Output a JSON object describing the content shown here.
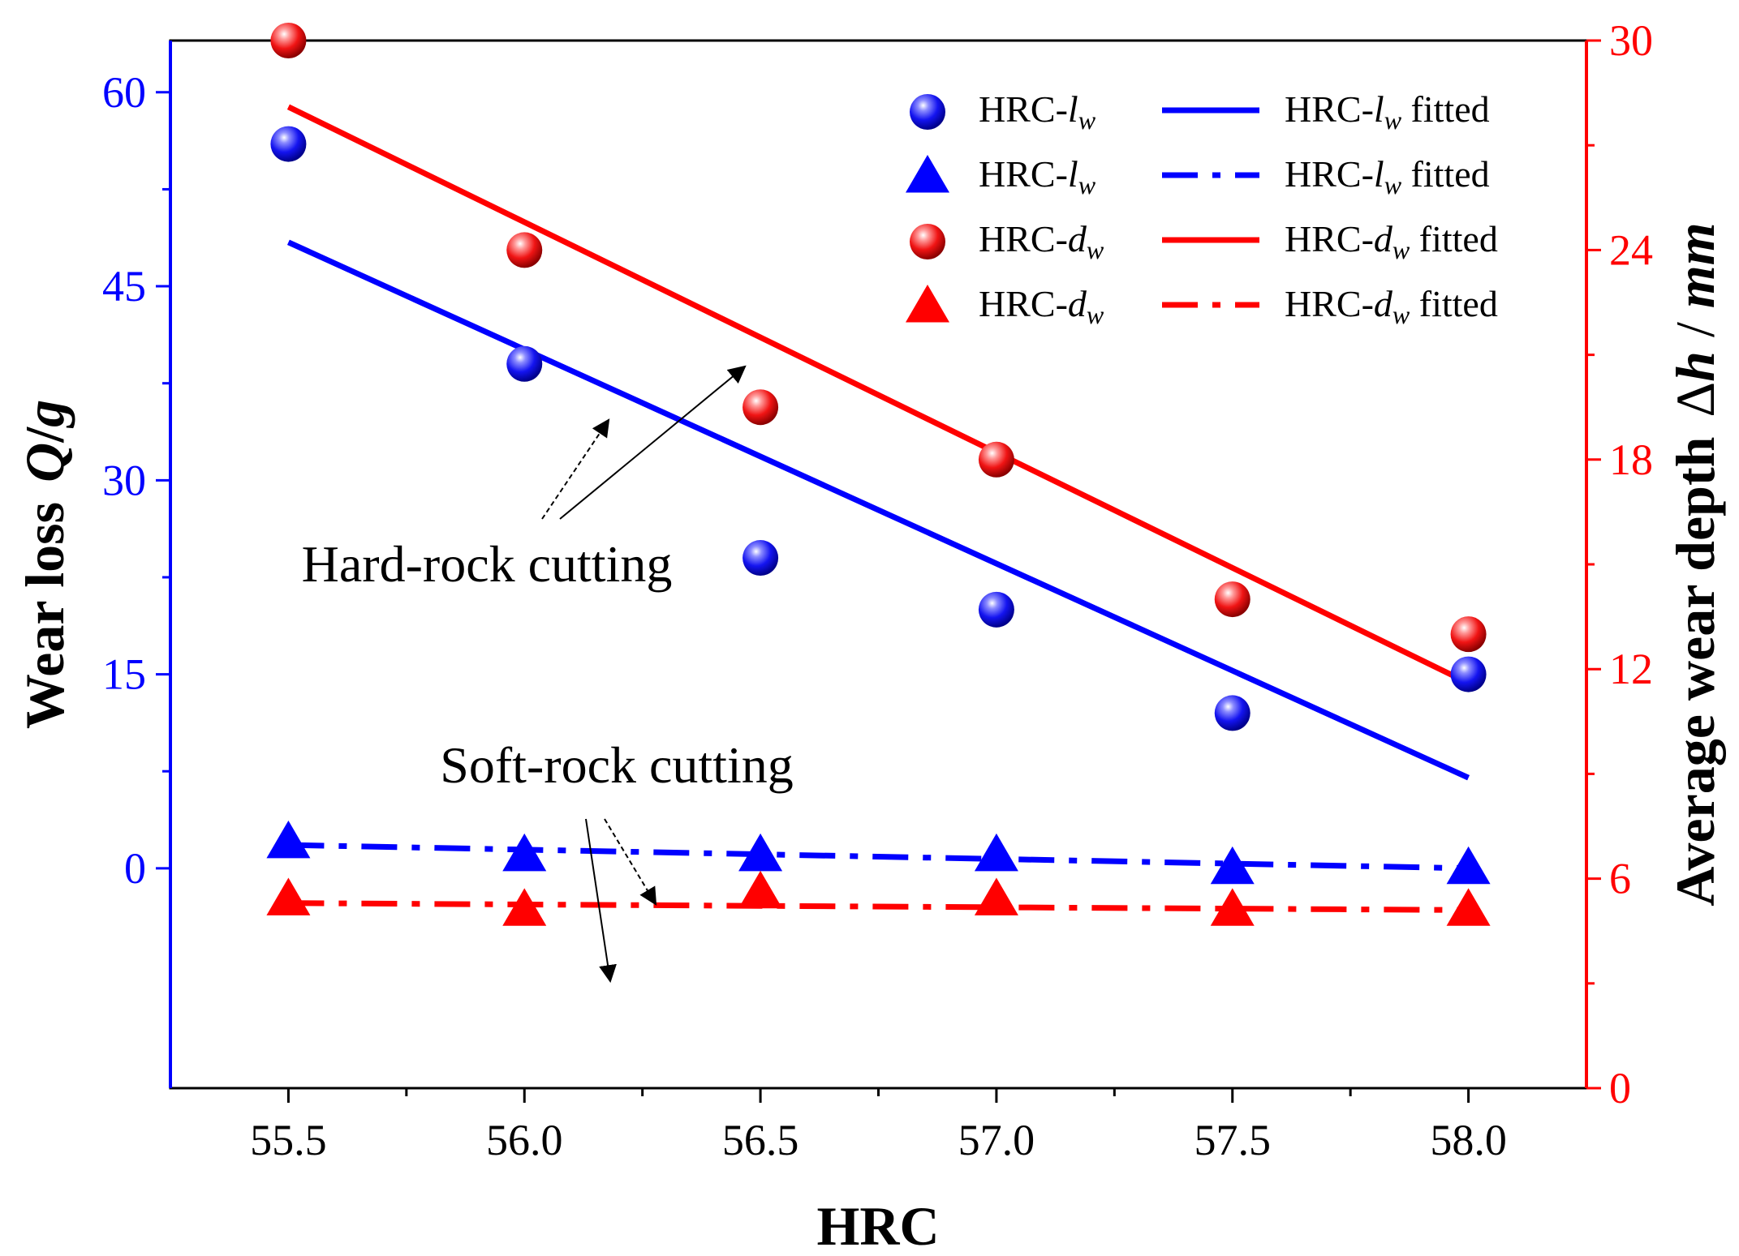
{
  "chart_data": {
    "type": "scatter",
    "xlabel": "HRC",
    "ylabel": {
      "prefix": "Wear loss",
      "symbol": "Q",
      "unit": "g"
    },
    "y2label": {
      "prefix": "Average wear depth",
      "symbol": "h",
      "unit": "mm"
    },
    "xlim": [
      55.25,
      58.25
    ],
    "ylim": [
      -17,
      64
    ],
    "y2lim": [
      0,
      30
    ],
    "xticks": [
      55.5,
      56.0,
      56.5,
      57.0,
      57.5,
      58.0
    ],
    "xtick_labels": [
      "55.5",
      "56.0",
      "56.5",
      "57.0",
      "57.5",
      "58.0"
    ],
    "yticks": [
      0,
      15,
      30,
      45,
      60
    ],
    "ytick_labels": [
      "0",
      "15",
      "30",
      "45",
      "60"
    ],
    "y2ticks": [
      0,
      6,
      12,
      18,
      24,
      30
    ],
    "y2tick_labels": [
      "0",
      "6",
      "12",
      "18",
      "24",
      "30"
    ],
    "colors": {
      "blue": "#0000ff",
      "red": "#ff0000",
      "axis": "#000000"
    },
    "series": [
      {
        "name": "HRC-lw",
        "kind": "points",
        "marker": "sphere",
        "color": "#0000ff",
        "axis": "left",
        "x": [
          55.5,
          56.0,
          56.5,
          57.0,
          57.5,
          58.0
        ],
        "y": [
          56.0,
          39.0,
          24.0,
          20.0,
          12.0,
          15.0
        ]
      },
      {
        "name": "HRC-lw fitted",
        "kind": "line",
        "style": "solid",
        "color": "#0000ff",
        "axis": "left",
        "x": [
          55.5,
          58.0
        ],
        "y": [
          48.4,
          7.0
        ]
      },
      {
        "name": "HRC-lw",
        "kind": "points",
        "marker": "triangle",
        "color": "#0000ff",
        "axis": "left",
        "x": [
          55.5,
          56.0,
          56.5,
          57.0,
          57.5,
          58.0
        ],
        "y": [
          2.0,
          1.0,
          1.0,
          1.0,
          0.0,
          0.0
        ]
      },
      {
        "name": "HRC-lw fitted",
        "kind": "line",
        "style": "dashdot",
        "color": "#0000ff",
        "axis": "left",
        "x": [
          55.5,
          58.0
        ],
        "y": [
          1.8,
          0.0
        ]
      },
      {
        "name": "HRC-dw",
        "kind": "points",
        "marker": "sphere",
        "color": "#ff0000",
        "axis": "right",
        "x": [
          55.5,
          56.0,
          56.5,
          57.0,
          57.5,
          58.0
        ],
        "y": [
          30.0,
          24.0,
          19.5,
          18.0,
          14.0,
          13.0
        ]
      },
      {
        "name": "HRC-dw fitted",
        "kind": "line",
        "style": "solid",
        "color": "#ff0000",
        "axis": "right",
        "x": [
          55.5,
          58.0
        ],
        "y": [
          28.1,
          11.6
        ]
      },
      {
        "name": "HRC-dw",
        "kind": "points",
        "marker": "triangle",
        "color": "#ff0000",
        "axis": "right",
        "x": [
          55.5,
          56.0,
          56.5,
          57.0,
          57.5,
          58.0
        ],
        "y": [
          5.4,
          5.1,
          5.6,
          5.4,
          5.1,
          5.1
        ]
      },
      {
        "name": "HRC-dw fitted",
        "kind": "line",
        "style": "dashdot",
        "color": "#ff0000",
        "axis": "right",
        "x": [
          55.5,
          58.0
        ],
        "y": [
          5.3,
          5.1
        ]
      }
    ],
    "legend": {
      "placement": "top-right",
      "entries": [
        {
          "label_prefix": "HRC-",
          "sym": "l",
          "sub": "w",
          "suffix": "",
          "marker": "sphere",
          "color": "#0000ff"
        },
        {
          "label_prefix": "HRC-",
          "sym": "l",
          "sub": "w",
          "suffix": " fitted",
          "line": "solid",
          "color": "#0000ff"
        },
        {
          "label_prefix": "HRC-",
          "sym": "l",
          "sub": "w",
          "suffix": "",
          "marker": "triangle",
          "color": "#0000ff"
        },
        {
          "label_prefix": "HRC-",
          "sym": "l",
          "sub": "w",
          "suffix": " fitted",
          "line": "dashdot",
          "color": "#0000ff"
        },
        {
          "label_prefix": "HRC-",
          "sym": "d",
          "sub": "w",
          "suffix": "",
          "marker": "sphere",
          "color": "#ff0000"
        },
        {
          "label_prefix": "HRC-",
          "sym": "d",
          "sub": "w",
          "suffix": " fitted",
          "line": "solid",
          "color": "#ff0000"
        },
        {
          "label_prefix": "HRC-",
          "sym": "d",
          "sub": "w",
          "suffix": "",
          "marker": "triangle",
          "color": "#ff0000"
        },
        {
          "label_prefix": "HRC-",
          "sym": "d",
          "sub": "w",
          "suffix": " fitted",
          "line": "dashdot",
          "color": "#ff0000"
        }
      ]
    },
    "annotations": [
      {
        "text": "Hard-rock cutting",
        "targets": [
          "HRC-lw fitted solid",
          "HRC-dw fitted solid"
        ]
      },
      {
        "text": "Soft-rock cutting",
        "targets": [
          "HRC-dw fitted dashdot",
          "HRC-lw fitted dashdot"
        ]
      }
    ]
  }
}
